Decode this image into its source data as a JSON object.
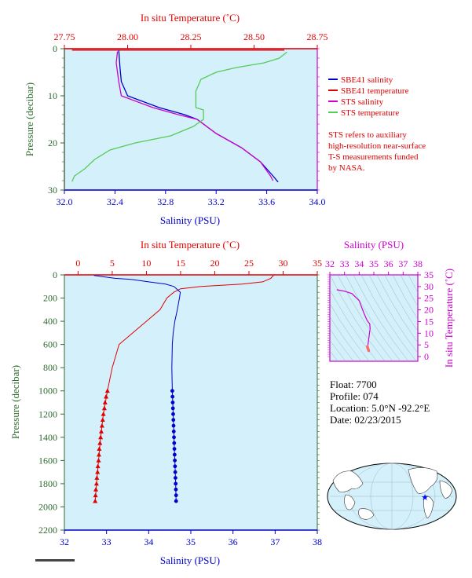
{
  "colors": {
    "red": "#e00000",
    "blue": "#0000cc",
    "magenta": "#cc00cc",
    "green": "#55cc55",
    "olive": "#2e6b2e",
    "panel_bg": "#d4f0fa",
    "map_land": "#ffffff",
    "map_ocean": "#d4f0fa",
    "map_marker": "#0000ff"
  },
  "legend": {
    "items": [
      {
        "label": "SBE41 salinity",
        "color": "#0000cc"
      },
      {
        "label": "SBE41 temperature",
        "color": "#e00000"
      },
      {
        "label": "STS salinity",
        "color": "#cc00cc"
      },
      {
        "label": "STS temperature",
        "color": "#55cc55"
      }
    ],
    "note_lines": [
      "STS refers to auxiliary",
      "high-resolution near-surface",
      "T-S measurements funded",
      "by NASA."
    ]
  },
  "info": {
    "float_line": "Float:  7700",
    "profile_line": "Profile:  074",
    "location_line": "Location:  5.0°N  -92.2°E",
    "date_line": "Date:  02/23/2015"
  },
  "chart_data": [
    {
      "type": "line",
      "name": "top-profile",
      "x_top_label": "In situ Temperature (˚C)",
      "x_bottom_label": "Salinity (PSU)",
      "ylabel": "Pressure (decibar)",
      "temp_range": [
        27.75,
        28.75
      ],
      "temp_ticks": [
        27.75,
        28.0,
        28.25,
        28.5,
        28.75
      ],
      "temp_tick_labels": [
        "27.75",
        "28.00",
        "28.25",
        "28.50",
        "28.75"
      ],
      "sal_range": [
        32.0,
        34.0
      ],
      "sal_ticks": [
        32.0,
        32.4,
        32.8,
        33.2,
        33.6,
        34.0
      ],
      "sal_tick_labels": [
        "32.0",
        "32.4",
        "32.8",
        "33.2",
        "33.6",
        "34.0"
      ],
      "ylim": [
        0,
        30
      ],
      "y_ticks": [
        0,
        10,
        20,
        30
      ],
      "y_tick_labels": [
        "0",
        "10",
        "20",
        "30"
      ],
      "series": [
        {
          "name": "SBE41 salinity",
          "axis": "salinity",
          "color": "#0000cc",
          "x": [
            32.43,
            32.44,
            32.45,
            32.5,
            32.75,
            32.95,
            33.05,
            33.2,
            33.4,
            33.55,
            33.65,
            33.69
          ],
          "y": [
            0.3,
            4.0,
            7.0,
            10.0,
            12.5,
            14.0,
            15.0,
            18.0,
            21.0,
            24.0,
            27.0,
            28.3
          ]
        },
        {
          "name": "SBE41 temperature",
          "axis": "temperature",
          "color": "#e00000",
          "x": [
            27.78,
            28.62
          ],
          "y": [
            0.3,
            0.3
          ]
        },
        {
          "name": "STS salinity",
          "axis": "salinity",
          "color": "#cc00cc",
          "x": [
            32.42,
            32.41,
            32.43,
            32.45,
            32.7,
            32.9,
            33.05,
            33.2,
            33.4,
            33.55,
            33.63,
            33.65
          ],
          "y": [
            0.6,
            3.0,
            7.0,
            10.0,
            12.5,
            14.0,
            15.0,
            18.0,
            21.0,
            24.0,
            27.0,
            28.0
          ]
        },
        {
          "name": "STS temperature",
          "axis": "temperature",
          "color": "#55cc55",
          "x": [
            28.63,
            28.6,
            28.54,
            28.43,
            28.35,
            28.29,
            28.27,
            28.27,
            28.3,
            28.3,
            28.26,
            28.17,
            28.03,
            27.93,
            27.87,
            27.83,
            27.79,
            27.78
          ],
          "y": [
            0.7,
            2.0,
            3.0,
            4.0,
            5.0,
            6.5,
            9.0,
            12.5,
            13.0,
            15.0,
            16.5,
            18.5,
            20.0,
            21.5,
            23.5,
            25.5,
            27.0,
            28.2
          ]
        }
      ]
    },
    {
      "type": "line",
      "name": "main-profile",
      "x_top_label": "In situ Temperature (˚C)",
      "x_bottom_label": "Salinity (PSU)",
      "ylabel": "Pressure (decibar)",
      "temp_range": [
        -2,
        35
      ],
      "temp_ticks": [
        0,
        5,
        10,
        15,
        20,
        25,
        30,
        35
      ],
      "temp_tick_labels": [
        "0",
        "5",
        "10",
        "15",
        "20",
        "25",
        "30",
        "35"
      ],
      "sal_range": [
        32,
        38
      ],
      "sal_ticks": [
        32,
        33,
        34,
        35,
        36,
        37,
        38
      ],
      "sal_tick_labels": [
        "32",
        "33",
        "34",
        "35",
        "36",
        "37",
        "38"
      ],
      "ylim": [
        0,
        2200
      ],
      "y_ticks": [
        0,
        200,
        400,
        600,
        800,
        1000,
        1200,
        1400,
        1600,
        1800,
        2000,
        2200
      ],
      "y_tick_labels": [
        "0",
        "200",
        "400",
        "600",
        "800",
        "1000",
        "1200",
        "1400",
        "1600",
        "1800",
        "2000",
        "2200"
      ],
      "series": [
        {
          "name": "SBE41 temperature",
          "axis": "temperature",
          "color": "#e00000",
          "x": [
            28.6,
            28.2,
            27.0,
            24.0,
            18.0,
            15.0,
            14.0,
            13.0,
            12.0,
            10.0,
            8.0,
            6.0,
            5.0,
            4.3,
            3.7,
            3.3,
            3.0,
            2.7,
            2.5
          ],
          "y": [
            5,
            30,
            60,
            80,
            100,
            120,
            150,
            200,
            300,
            400,
            500,
            600,
            800,
            1000,
            1200,
            1400,
            1600,
            1800,
            1950
          ]
        },
        {
          "name": "SBE41 salinity",
          "axis": "salinity",
          "color": "#0000cc",
          "x": [
            32.7,
            33.2,
            33.6,
            34.0,
            34.4,
            34.6,
            34.75,
            34.73,
            34.68,
            34.62,
            34.58,
            34.56,
            34.55,
            34.56,
            34.58,
            34.6,
            34.62,
            34.64,
            34.65
          ],
          "y": [
            5,
            30,
            40,
            60,
            80,
            100,
            150,
            200,
            300,
            400,
            500,
            600,
            800,
            1000,
            1200,
            1400,
            1600,
            1800,
            1950
          ]
        }
      ],
      "marker_points": {
        "temperature": {
          "y": [
            1000,
            1050,
            1100,
            1150,
            1200,
            1250,
            1300,
            1350,
            1400,
            1450,
            1500,
            1550,
            1600,
            1650,
            1700,
            1750,
            1800,
            1850,
            1900,
            1950
          ],
          "x": [
            4.3,
            4.1,
            3.95,
            3.85,
            3.7,
            3.6,
            3.5,
            3.4,
            3.3,
            3.2,
            3.1,
            3.05,
            3.0,
            2.9,
            2.85,
            2.75,
            2.7,
            2.6,
            2.55,
            2.5
          ]
        },
        "salinity": {
          "y": [
            1000,
            1050,
            1100,
            1150,
            1200,
            1250,
            1300,
            1350,
            1400,
            1450,
            1500,
            1550,
            1600,
            1650,
            1700,
            1750,
            1800,
            1850,
            1900,
            1950
          ],
          "x": [
            34.56,
            34.565,
            34.57,
            34.575,
            34.58,
            34.585,
            34.59,
            34.595,
            34.6,
            34.605,
            34.61,
            34.615,
            34.62,
            34.625,
            34.63,
            34.635,
            34.64,
            34.645,
            34.65,
            34.65
          ]
        }
      }
    },
    {
      "type": "line",
      "name": "ts-diagram",
      "x_top_label": "Salinity (PSU)",
      "right_label": "In situ Temperature (˚C)",
      "sal_range": [
        32,
        38
      ],
      "sal_ticks": [
        32,
        33,
        34,
        35,
        36,
        37,
        38
      ],
      "sal_tick_labels": [
        "32",
        "33",
        "34",
        "35",
        "36",
        "37",
        "38"
      ],
      "temp_range": [
        -2,
        35
      ],
      "temp_ticks": [
        0,
        5,
        10,
        15,
        20,
        25,
        30,
        35
      ],
      "temp_tick_labels": [
        "0",
        "5",
        "10",
        "15",
        "20",
        "25",
        "30",
        "35"
      ],
      "series": [
        {
          "name": "T-S curve",
          "color": "#cc00cc",
          "x": [
            32.5,
            33.0,
            33.5,
            34.0,
            34.3,
            34.5,
            34.6,
            34.72,
            34.75,
            34.7,
            34.66,
            34.62,
            34.6
          ],
          "y": [
            28.6,
            28.0,
            27.0,
            24.0,
            19.0,
            16.0,
            15.0,
            14.0,
            12.0,
            10.0,
            8.0,
            6.0,
            5.0
          ]
        },
        {
          "name": "T-S deep",
          "color": "#ff6a6a",
          "x": [
            34.56,
            34.58,
            34.6,
            34.62,
            34.64,
            34.65
          ],
          "y": [
            4.3,
            3.7,
            3.3,
            3.0,
            2.7,
            2.5
          ]
        }
      ]
    }
  ],
  "map": {
    "marker": "star-icon",
    "float_lon": -92.2,
    "float_lat": 5.0
  }
}
